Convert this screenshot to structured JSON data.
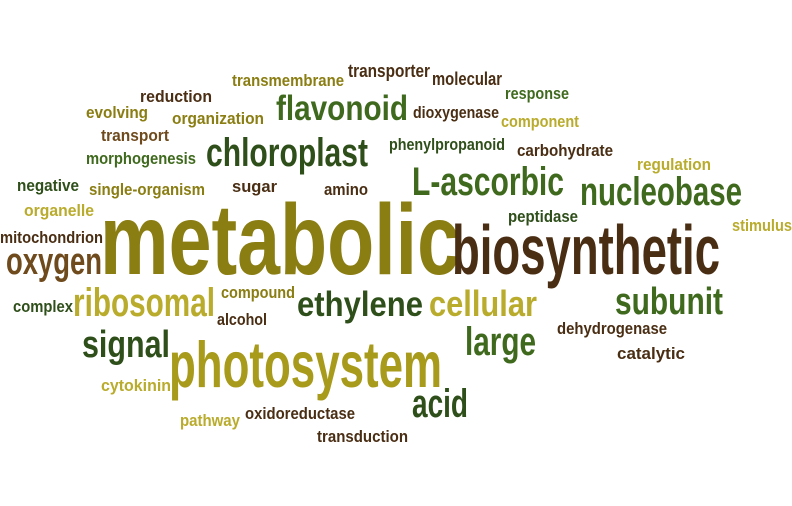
{
  "colors": {
    "dark_green": "#2f4f1a",
    "green": "#3f6a1e",
    "olive": "#8a7d12",
    "gold": "#a89a1a",
    "light_olive": "#b9ab2c",
    "dark_brown": "#4a2e14",
    "brown": "#6e4a1c"
  },
  "words": [
    {
      "text": "transporter",
      "color": "#4a2e14"
    },
    {
      "text": "transmembrane",
      "color": "#8a7d12"
    },
    {
      "text": "molecular",
      "color": "#4a2e14"
    },
    {
      "text": "reduction",
      "color": "#4a2e14"
    },
    {
      "text": "response",
      "color": "#3f6a1e"
    },
    {
      "text": "evolving",
      "color": "#8a7d12"
    },
    {
      "text": "organization",
      "color": "#8a7d12"
    },
    {
      "text": "flavonoid",
      "color": "#3f6a1e"
    },
    {
      "text": "dioxygenase",
      "color": "#4a2e14"
    },
    {
      "text": "component",
      "color": "#b9ab2c"
    },
    {
      "text": "transport",
      "color": "#6e4a1c"
    },
    {
      "text": "chloroplast",
      "color": "#2f4f1a"
    },
    {
      "text": "phenylpropanoid",
      "color": "#2f4f1a"
    },
    {
      "text": "carbohydrate",
      "color": "#4a2e14"
    },
    {
      "text": "morphogenesis",
      "color": "#3f6a1e"
    },
    {
      "text": "regulation",
      "color": "#b9ab2c"
    },
    {
      "text": "negative",
      "color": "#2f4f1a"
    },
    {
      "text": "single-organism",
      "color": "#8a7d12"
    },
    {
      "text": "sugar",
      "color": "#4a2e14"
    },
    {
      "text": "amino",
      "color": "#4a2e14"
    },
    {
      "text": "L-ascorbic",
      "color": "#3f6a1e"
    },
    {
      "text": "nucleobase",
      "color": "#3f6a1e"
    },
    {
      "text": "organelle",
      "color": "#b9ab2c"
    },
    {
      "text": "metabolic",
      "color": "#8a7d12"
    },
    {
      "text": "peptidase",
      "color": "#2f4f1a"
    },
    {
      "text": "stimulus",
      "color": "#b9ab2c"
    },
    {
      "text": "mitochondrion",
      "color": "#4a2e14"
    },
    {
      "text": "biosynthetic",
      "color": "#4a2e14"
    },
    {
      "text": "oxygen",
      "color": "#6e4a1c"
    },
    {
      "text": "complex",
      "color": "#2f4f1a"
    },
    {
      "text": "ribosomal",
      "color": "#b9ab2c"
    },
    {
      "text": "compound",
      "color": "#8a7d12"
    },
    {
      "text": "ethylene",
      "color": "#2f4f1a"
    },
    {
      "text": "cellular",
      "color": "#b9ab2c"
    },
    {
      "text": "subunit",
      "color": "#3f6a1e"
    },
    {
      "text": "alcohol",
      "color": "#4a2e14"
    },
    {
      "text": "dehydrogenase",
      "color": "#4a2e14"
    },
    {
      "text": "signal",
      "color": "#2f4f1a"
    },
    {
      "text": "photosystem",
      "color": "#a89a1a"
    },
    {
      "text": "large",
      "color": "#3f6a1e"
    },
    {
      "text": "catalytic",
      "color": "#4a2e14"
    },
    {
      "text": "cytokinin",
      "color": "#b9ab2c"
    },
    {
      "text": "acid",
      "color": "#2f4f1a"
    },
    {
      "text": "pathway",
      "color": "#b9ab2c"
    },
    {
      "text": "oxidoreductase",
      "color": "#4a2e14"
    },
    {
      "text": "transduction",
      "color": "#4a2e14"
    }
  ]
}
